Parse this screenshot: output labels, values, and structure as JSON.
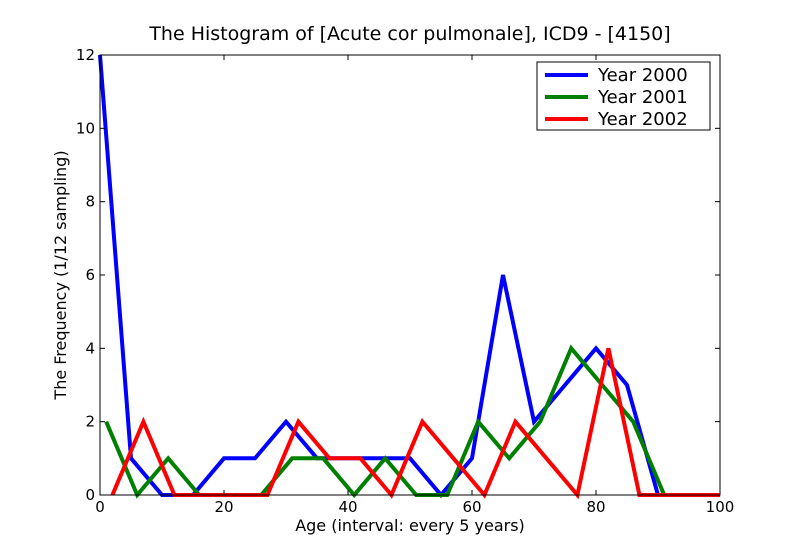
{
  "chart_data": {
    "type": "line",
    "title": "The Histogram of [Acute cor pulmonale], ICD9 - [4150]",
    "xlabel": "Age (interval: every 5 years)",
    "ylabel": "The Frequency (1/12 sampling)",
    "xlim": [
      0,
      100
    ],
    "ylim": [
      0,
      12
    ],
    "x_ticks": [
      "0",
      "20",
      "40",
      "60",
      "80",
      "100"
    ],
    "y_ticks": [
      "0",
      "2",
      "4",
      "6",
      "8",
      "10",
      "12"
    ],
    "grid": false,
    "legend_position": "top-right",
    "series": [
      {
        "name": "Year 2000",
        "color": "#0000ff",
        "points": [
          [
            0,
            12
          ],
          [
            5,
            1
          ],
          [
            10,
            0
          ],
          [
            15,
            0
          ],
          [
            20,
            1
          ],
          [
            25,
            1
          ],
          [
            30,
            2
          ],
          [
            35,
            1
          ],
          [
            40,
            1
          ],
          [
            45,
            1
          ],
          [
            50,
            1
          ],
          [
            55,
            0
          ],
          [
            60,
            1
          ],
          [
            65,
            6
          ],
          [
            70,
            2
          ],
          [
            75,
            3
          ],
          [
            80,
            4
          ],
          [
            85,
            3
          ],
          [
            90,
            0
          ],
          [
            95,
            0
          ],
          [
            100,
            0
          ]
        ]
      },
      {
        "name": "Year 2001",
        "color": "#008000",
        "points": [
          [
            1,
            2
          ],
          [
            6,
            0
          ],
          [
            11,
            1
          ],
          [
            16,
            0
          ],
          [
            21,
            0
          ],
          [
            26,
            0
          ],
          [
            31,
            1
          ],
          [
            36,
            1
          ],
          [
            41,
            0
          ],
          [
            46,
            1
          ],
          [
            51,
            0
          ],
          [
            56,
            0
          ],
          [
            61,
            2
          ],
          [
            66,
            1
          ],
          [
            71,
            2
          ],
          [
            76,
            4
          ],
          [
            81,
            3
          ],
          [
            86,
            2
          ],
          [
            91,
            0
          ],
          [
            96,
            0
          ],
          [
            100,
            0
          ]
        ]
      },
      {
        "name": "Year 2002",
        "color": "#ff0000",
        "points": [
          [
            2,
            0
          ],
          [
            7,
            2
          ],
          [
            12,
            0
          ],
          [
            17,
            0
          ],
          [
            22,
            0
          ],
          [
            27,
            0
          ],
          [
            32,
            2
          ],
          [
            37,
            1
          ],
          [
            42,
            1
          ],
          [
            47,
            0
          ],
          [
            52,
            2
          ],
          [
            57,
            1
          ],
          [
            62,
            0
          ],
          [
            67,
            2
          ],
          [
            72,
            1
          ],
          [
            77,
            0
          ],
          [
            82,
            4
          ],
          [
            87,
            0
          ],
          [
            92,
            0
          ],
          [
            97,
            0
          ],
          [
            100,
            0
          ]
        ]
      }
    ]
  }
}
